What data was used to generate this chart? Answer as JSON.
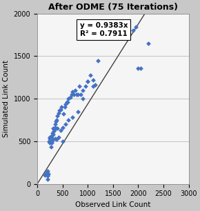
{
  "title": "After ODME (75 Iterations)",
  "xlabel": "Observed Link Count",
  "ylabel": "Simulated Link Count",
  "xlim": [
    0,
    3000
  ],
  "ylim": [
    0,
    2000
  ],
  "xticks": [
    0,
    500,
    1000,
    1500,
    2000,
    2500,
    3000
  ],
  "yticks": [
    0,
    500,
    1000,
    1500,
    2000
  ],
  "slope": 0.9383,
  "equation_label": "y = 0.9383x",
  "r2_label": "R² = 0.7911",
  "dot_color": "#4472C4",
  "line_color": "#404040",
  "scatter_x": [
    150,
    180,
    200,
    200,
    210,
    220,
    230,
    240,
    250,
    250,
    260,
    270,
    280,
    290,
    300,
    300,
    310,
    320,
    330,
    340,
    350,
    360,
    370,
    380,
    390,
    400,
    420,
    440,
    460,
    480,
    500,
    520,
    540,
    560,
    580,
    600,
    620,
    650,
    680,
    700,
    720,
    750,
    780,
    800,
    830,
    860,
    900,
    950,
    1000,
    1050,
    1100,
    1150,
    1200,
    1900,
    1950,
    2000,
    2050,
    2200,
    200,
    250,
    280,
    320,
    350,
    380,
    420,
    460,
    500,
    560,
    620,
    700,
    800,
    900,
    1000,
    1100
  ],
  "scatter_y": [
    100,
    130,
    50,
    90,
    100,
    120,
    500,
    550,
    480,
    530,
    550,
    430,
    560,
    480,
    530,
    600,
    650,
    580,
    620,
    640,
    660,
    700,
    730,
    750,
    650,
    800,
    830,
    860,
    870,
    900,
    500,
    820,
    900,
    940,
    960,
    960,
    1000,
    1020,
    1050,
    1080,
    1050,
    1100,
    1050,
    1050,
    1150,
    1050,
    1100,
    1150,
    1200,
    1280,
    1150,
    1160,
    1450,
    1800,
    1840,
    1360,
    1360,
    1650,
    150,
    490,
    500,
    520,
    530,
    520,
    550,
    630,
    660,
    700,
    750,
    780,
    850,
    1000,
    1200,
    1220
  ]
}
